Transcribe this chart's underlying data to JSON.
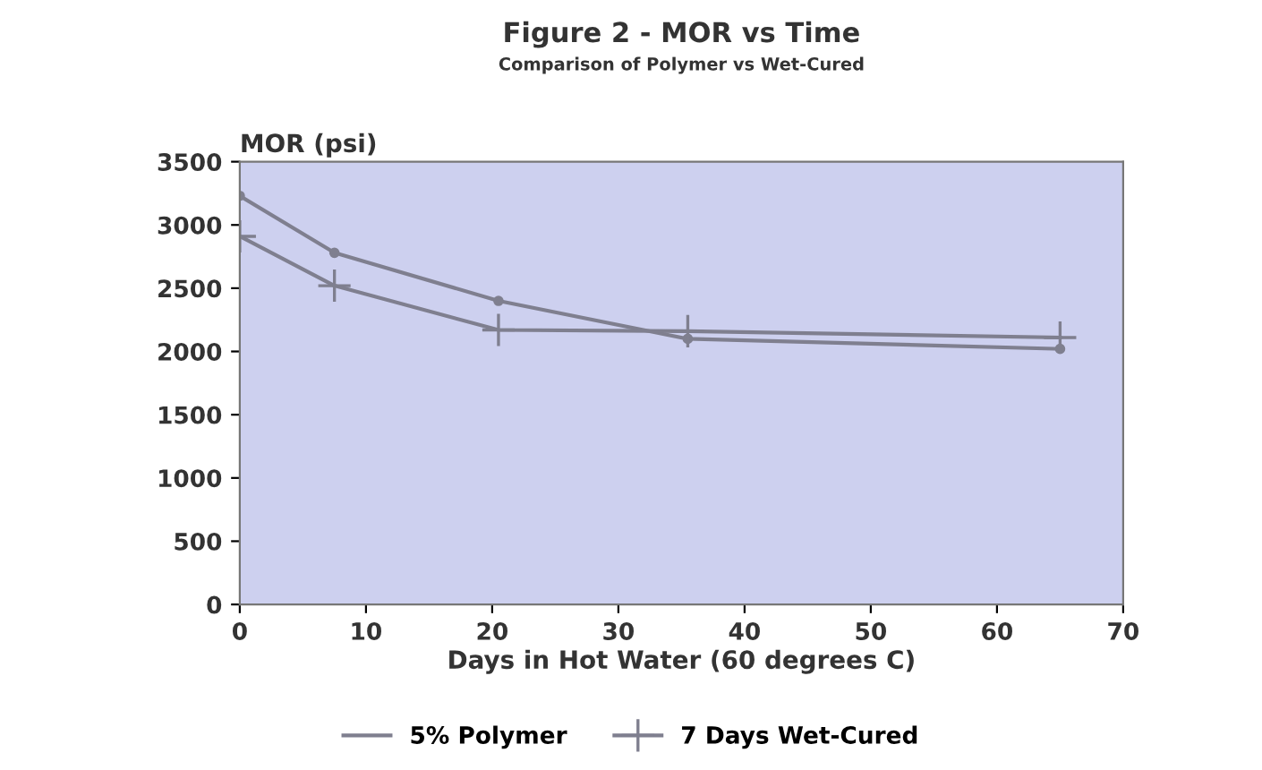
{
  "chart_data": {
    "type": "line",
    "title": "Figure 2 - MOR vs Time",
    "subtitle": "Comparison of Polymer vs Wet-Cured",
    "xlabel": "Days in Hot Water (60 degrees C)",
    "ylabel": "MOR (psi)",
    "series": [
      {
        "name": "5% Polymer",
        "color": "#7f7f8f",
        "x": [
          0,
          7.5,
          20.5,
          35.5,
          65
        ],
        "values": [
          3230,
          2780,
          2400,
          2100,
          2020
        ],
        "marker": "circle"
      },
      {
        "name": "7 Days Wet-Cured",
        "color": "#7f7f8f",
        "x": [
          0,
          7.5,
          20.5,
          35.5,
          65
        ],
        "values": [
          2910,
          2520,
          2170,
          2160,
          2110
        ],
        "marker": "cross"
      }
    ],
    "xlim": [
      0,
      70
    ],
    "xticks": [
      0,
      10,
      20,
      30,
      40,
      50,
      60,
      70
    ],
    "ylim": [
      0,
      3500
    ],
    "yticks": [
      0,
      500,
      1000,
      1500,
      2000,
      2500,
      3000,
      3500
    ],
    "grid": false,
    "legend": "bottom",
    "line_style": "solid"
  }
}
